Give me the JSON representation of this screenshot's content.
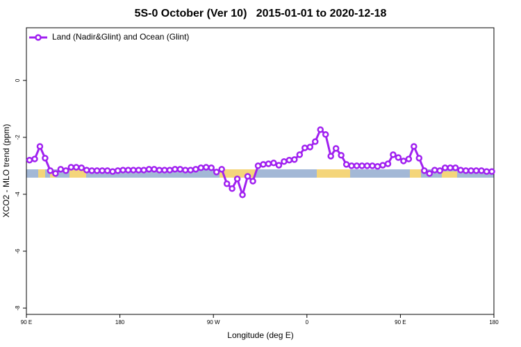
{
  "chart_data": {
    "type": "line",
    "title": "5S-0 October (Ver 10)   2015-01-01 to 2020-12-18",
    "x_label": "Longitude (deg E)",
    "y_label": "XCO2 - MLO trend (ppm)",
    "xlim": [
      90,
      540
    ],
    "ylim": [
      -8.22,
      1.85
    ],
    "xticks": [
      {
        "value": 90,
        "label": "90 E"
      },
      180,
      {
        "value": 270,
        "label": "90 W"
      },
      {
        "value": 360,
        "label": "0"
      },
      {
        "value": 450,
        "label": "90 E"
      },
      {
        "value": 540,
        "label": "180"
      }
    ],
    "yticks": [
      -8,
      -6,
      -4,
      -2,
      0
    ],
    "legend": "top-left",
    "x": [
      93,
      98,
      103,
      108,
      113,
      118,
      123,
      128,
      133,
      138,
      143,
      148,
      153,
      158,
      163,
      168,
      173,
      178,
      183,
      188,
      193,
      198,
      203,
      208,
      213,
      218,
      223,
      228,
      233,
      238,
      243,
      248,
      253,
      258,
      263,
      268,
      273,
      278,
      283,
      288,
      293,
      298,
      303,
      308,
      313,
      318,
      323,
      328,
      333,
      338,
      343,
      348,
      353,
      358,
      363,
      368,
      373,
      378,
      383,
      388,
      393,
      398,
      403,
      408,
      413,
      418,
      423,
      428,
      433,
      438,
      443,
      448,
      453,
      458,
      463,
      468,
      473,
      478,
      483,
      488,
      493,
      498,
      503,
      508,
      513,
      518,
      523,
      528,
      533,
      538
    ],
    "series": [
      {
        "name": "Land (Nadir&Glint) and Ocean (Glint)",
        "color": "#a020f0",
        "values": [
          -2.8,
          -2.76,
          -2.32,
          -2.73,
          -3.17,
          -3.27,
          -3.12,
          -3.17,
          -3.05,
          -3.05,
          -3.07,
          -3.15,
          -3.17,
          -3.17,
          -3.17,
          -3.17,
          -3.2,
          -3.17,
          -3.15,
          -3.15,
          -3.15,
          -3.15,
          -3.15,
          -3.12,
          -3.12,
          -3.15,
          -3.15,
          -3.15,
          -3.12,
          -3.12,
          -3.15,
          -3.15,
          -3.12,
          -3.07,
          -3.05,
          -3.07,
          -3.22,
          -3.12,
          -3.63,
          -3.8,
          -3.46,
          -4.02,
          -3.37,
          -3.54,
          -3.0,
          -2.95,
          -2.93,
          -2.9,
          -2.98,
          -2.85,
          -2.8,
          -2.78,
          -2.61,
          -2.37,
          -2.34,
          -2.15,
          -1.73,
          -1.9,
          -2.66,
          -2.39,
          -2.63,
          -2.95,
          -3.0,
          -3.0,
          -3.0,
          -3.0,
          -3.0,
          -3.02,
          -2.98,
          -2.93,
          -2.61,
          -2.71,
          -2.83,
          -2.76,
          -2.32,
          -2.73,
          -3.17,
          -3.27,
          -3.15,
          -3.17,
          -3.07,
          -3.07,
          -3.07,
          -3.15,
          -3.17,
          -3.17,
          -3.17,
          -3.17,
          -3.2,
          -3.2
        ]
      }
    ]
  }
}
